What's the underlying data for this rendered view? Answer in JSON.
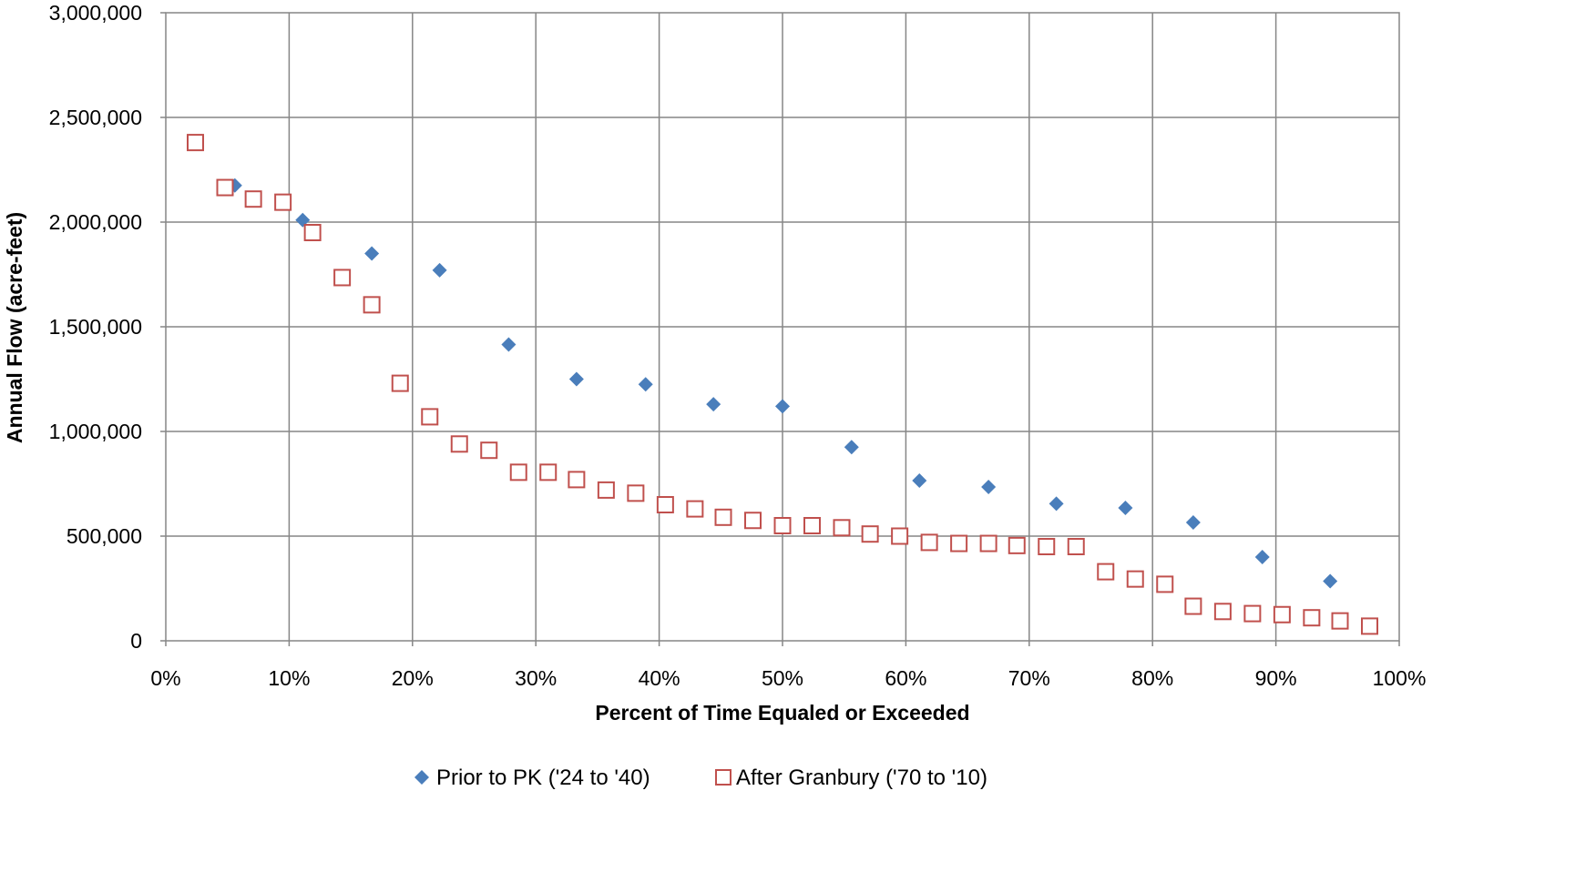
{
  "chart_data": {
    "type": "scatter",
    "title": "",
    "xlabel": "Percent of Time Equaled or Exceeded",
    "ylabel": "Annual Flow (acre-feet)",
    "xlim": [
      0,
      100
    ],
    "ylim": [
      0,
      3000000
    ],
    "x_ticks": [
      "0%",
      "10%",
      "20%",
      "30%",
      "40%",
      "50%",
      "60%",
      "70%",
      "80%",
      "90%",
      "100%"
    ],
    "y_ticks": [
      "0",
      "500,000",
      "1,000,000",
      "1,500,000",
      "2,000,000",
      "2,500,000",
      "3,000,000"
    ],
    "grid": true,
    "legend_position": "bottom",
    "series": [
      {
        "name": "Prior to PK ('24 to '40)",
        "marker": "diamond",
        "color": "#4a7ebb",
        "x": [
          5.6,
          11.1,
          16.7,
          22.2,
          27.8,
          33.3,
          38.9,
          44.4,
          50.0,
          55.6,
          61.1,
          66.7,
          72.2,
          77.8,
          83.3,
          88.9,
          94.4
        ],
        "y": [
          2175000,
          2010000,
          1850000,
          1770000,
          1415000,
          1250000,
          1225000,
          1130000,
          1120000,
          925000,
          765000,
          735000,
          655000,
          635000,
          565000,
          400000,
          285000
        ]
      },
      {
        "name": "After Granbury ('70 to '10)",
        "marker": "square-open",
        "color": "#c0504d",
        "x": [
          2.4,
          4.8,
          7.1,
          9.5,
          11.9,
          14.3,
          16.7,
          19.0,
          21.4,
          23.8,
          26.2,
          28.6,
          31.0,
          33.3,
          35.7,
          38.1,
          40.5,
          42.9,
          45.2,
          47.6,
          50.0,
          52.4,
          54.8,
          57.1,
          59.5,
          61.9,
          64.3,
          66.7,
          69.0,
          71.4,
          73.8,
          76.2,
          78.6,
          81.0,
          83.3,
          85.7,
          88.1,
          90.5,
          92.9,
          95.2,
          97.6
        ],
        "y": [
          2380000,
          2165000,
          2110000,
          2095000,
          1950000,
          1735000,
          1605000,
          1230000,
          1070000,
          940000,
          910000,
          805000,
          805000,
          770000,
          720000,
          705000,
          650000,
          630000,
          590000,
          575000,
          550000,
          550000,
          540000,
          510000,
          500000,
          470000,
          465000,
          465000,
          455000,
          450000,
          450000,
          330000,
          295000,
          270000,
          165000,
          140000,
          130000,
          125000,
          110000,
          95000,
          70000
        ]
      }
    ]
  }
}
